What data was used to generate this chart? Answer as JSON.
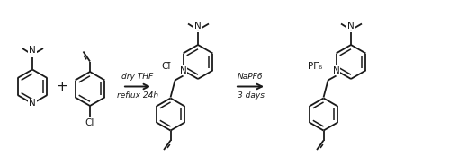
{
  "bg_color": "#ffffff",
  "line_color": "#1a1a1a",
  "text_color": "#1a1a1a",
  "arrow1_label_top": "dry THF",
  "arrow1_label_bot": "reflux 24h",
  "arrow2_label_top": "NaPF6",
  "arrow2_label_bot": "3 days",
  "lw": 1.3,
  "figw": 5.0,
  "figh": 1.74,
  "dpi": 100
}
